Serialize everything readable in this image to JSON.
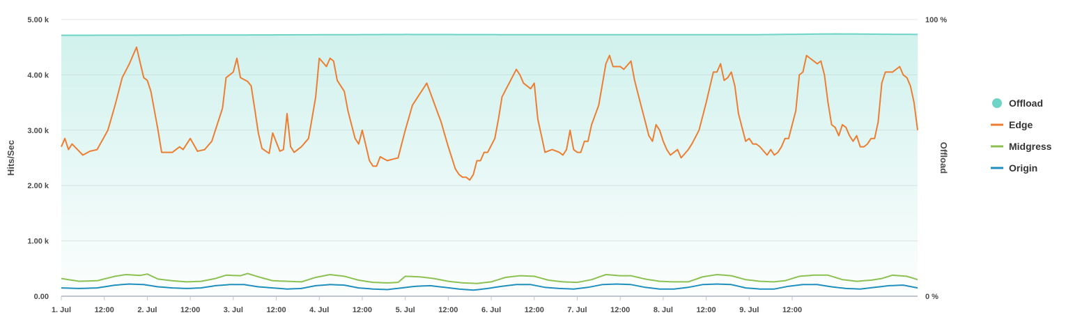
{
  "chart_data": {
    "type": "line",
    "x_range": [
      "1. Jul 00:00",
      "9. Jul 23:00"
    ],
    "x_ticks": [
      "1. Jul",
      "12:00",
      "2. Jul",
      "12:00",
      "3. Jul",
      "12:00",
      "4. Jul",
      "12:00",
      "5. Jul",
      "12:00",
      "6. Jul",
      "12:00",
      "7. Jul",
      "12:00",
      "8. Jul",
      "12:00",
      "9. Jul",
      "12:00"
    ],
    "y_left": {
      "label": "Hits/Sec",
      "ticks": [
        "0.00",
        "1.00 k",
        "2.00 k",
        "3.00 k",
        "4.00 k",
        "5.00 k"
      ],
      "range": [
        0,
        5000
      ]
    },
    "y_right": {
      "label": "Offload",
      "ticks": [
        "0 %",
        "100 %"
      ],
      "range": [
        0,
        100
      ]
    },
    "grid": true,
    "legend_position": "right",
    "series": [
      {
        "name": "Offload",
        "axis": "right",
        "style": "area",
        "color": "#6ed4c6",
        "knots": [
          [
            0,
            94.3
          ],
          [
            48,
            94.4
          ],
          [
            96,
            94.6
          ],
          [
            144,
            94.5
          ],
          [
            192,
            94.5
          ],
          [
            216,
            94.8
          ],
          [
            240,
            94.6
          ],
          [
            264,
            94.7
          ],
          [
            284,
            94.9
          ]
        ],
        "description": "Roughly flat around 94-95 %"
      },
      {
        "name": "Edge",
        "axis": "left",
        "style": "line",
        "color": "#ed7d31",
        "knots": [
          [
            0,
            2700
          ],
          [
            1,
            2850
          ],
          [
            2,
            2650
          ],
          [
            3,
            2750
          ],
          [
            6,
            2550
          ],
          [
            8,
            2620
          ],
          [
            10,
            2650
          ],
          [
            13,
            3000
          ],
          [
            15,
            3450
          ],
          [
            17,
            3950
          ],
          [
            19,
            4200
          ],
          [
            21,
            4500
          ],
          [
            23,
            3950
          ],
          [
            24,
            3900
          ],
          [
            25,
            3700
          ],
          [
            27,
            3000
          ],
          [
            28,
            2600
          ],
          [
            31,
            2600
          ],
          [
            33,
            2700
          ],
          [
            34,
            2650
          ],
          [
            36,
            2850
          ],
          [
            38,
            2620
          ],
          [
            40,
            2650
          ],
          [
            42,
            2800
          ],
          [
            45,
            3400
          ],
          [
            46,
            3950
          ],
          [
            48,
            4050
          ],
          [
            49,
            4300
          ],
          [
            50,
            3950
          ],
          [
            52,
            3880
          ],
          [
            53,
            3800
          ],
          [
            55,
            2950
          ],
          [
            56,
            2670
          ],
          [
            58,
            2580
          ],
          [
            59,
            2950
          ],
          [
            61,
            2620
          ],
          [
            62,
            2650
          ],
          [
            63,
            3300
          ],
          [
            64,
            2700
          ],
          [
            65,
            2600
          ],
          [
            67,
            2700
          ],
          [
            69,
            2850
          ],
          [
            71,
            3600
          ],
          [
            72,
            4300
          ],
          [
            74,
            4150
          ],
          [
            75,
            4300
          ],
          [
            76,
            4250
          ],
          [
            77,
            3900
          ],
          [
            78,
            3800
          ],
          [
            79,
            3700
          ],
          [
            80,
            3350
          ],
          [
            82,
            2850
          ],
          [
            83,
            2750
          ],
          [
            84,
            3000
          ],
          [
            86,
            2450
          ],
          [
            87,
            2350
          ],
          [
            88,
            2350
          ],
          [
            89,
            2520
          ],
          [
            91,
            2450
          ],
          [
            94,
            2500
          ],
          [
            96,
            3000
          ],
          [
            98,
            3450
          ],
          [
            100,
            3650
          ],
          [
            102,
            3850
          ],
          [
            104,
            3500
          ],
          [
            106,
            3150
          ],
          [
            108,
            2700
          ],
          [
            110,
            2300
          ],
          [
            111,
            2200
          ],
          [
            112,
            2150
          ],
          [
            113,
            2150
          ],
          [
            114,
            2100
          ],
          [
            115,
            2200
          ],
          [
            116,
            2450
          ],
          [
            117,
            2450
          ],
          [
            118,
            2600
          ],
          [
            119,
            2600
          ],
          [
            121,
            2850
          ],
          [
            122,
            3200
          ],
          [
            123,
            3600
          ],
          [
            125,
            3850
          ],
          [
            127,
            4100
          ],
          [
            128,
            4000
          ],
          [
            129,
            3850
          ],
          [
            131,
            3750
          ],
          [
            132,
            3850
          ],
          [
            133,
            3200
          ],
          [
            134,
            2900
          ],
          [
            135,
            2600
          ],
          [
            137,
            2650
          ],
          [
            139,
            2600
          ],
          [
            140,
            2550
          ],
          [
            141,
            2650
          ],
          [
            142,
            3000
          ],
          [
            143,
            2650
          ],
          [
            144,
            2600
          ],
          [
            145,
            2600
          ],
          [
            146,
            2800
          ],
          [
            147,
            2800
          ],
          [
            148,
            3100
          ],
          [
            150,
            3450
          ],
          [
            152,
            4200
          ],
          [
            153,
            4350
          ],
          [
            154,
            4150
          ],
          [
            156,
            4150
          ],
          [
            157,
            4100
          ],
          [
            159,
            4250
          ],
          [
            160,
            3900
          ],
          [
            162,
            3400
          ],
          [
            164,
            2900
          ],
          [
            165,
            2800
          ],
          [
            166,
            3100
          ],
          [
            167,
            3000
          ],
          [
            168,
            2800
          ],
          [
            169,
            2650
          ],
          [
            170,
            2550
          ],
          [
            172,
            2650
          ],
          [
            173,
            2500
          ],
          [
            175,
            2650
          ],
          [
            176,
            2750
          ],
          [
            178,
            3000
          ],
          [
            180,
            3500
          ],
          [
            182,
            4050
          ],
          [
            183,
            4050
          ],
          [
            184,
            4200
          ],
          [
            185,
            3900
          ],
          [
            186,
            3950
          ],
          [
            187,
            4050
          ],
          [
            188,
            3800
          ],
          [
            189,
            3300
          ],
          [
            191,
            2800
          ],
          [
            192,
            2850
          ],
          [
            193,
            2750
          ],
          [
            194,
            2750
          ],
          [
            195,
            2700
          ],
          [
            197,
            2550
          ],
          [
            198,
            2650
          ],
          [
            199,
            2550
          ],
          [
            200,
            2600
          ],
          [
            201,
            2700
          ],
          [
            202,
            2850
          ],
          [
            203,
            2850
          ],
          [
            205,
            3350
          ],
          [
            206,
            4000
          ],
          [
            207,
            4050
          ],
          [
            208,
            4350
          ],
          [
            210,
            4250
          ],
          [
            211,
            4200
          ],
          [
            212,
            4250
          ],
          [
            213,
            4000
          ],
          [
            214,
            3500
          ],
          [
            215,
            3100
          ],
          [
            216,
            3050
          ],
          [
            217,
            2900
          ],
          [
            218,
            3100
          ],
          [
            219,
            3050
          ],
          [
            220,
            2900
          ],
          [
            221,
            2800
          ],
          [
            222,
            2900
          ],
          [
            223,
            2700
          ],
          [
            224,
            2700
          ],
          [
            225,
            2750
          ],
          [
            226,
            2850
          ],
          [
            227,
            2850
          ],
          [
            228,
            3150
          ],
          [
            229,
            3850
          ],
          [
            230,
            4050
          ],
          [
            231,
            4050
          ],
          [
            232,
            4050
          ],
          [
            233,
            4100
          ],
          [
            234,
            4150
          ],
          [
            235,
            4000
          ],
          [
            236,
            3950
          ],
          [
            237,
            3800
          ],
          [
            238,
            3500
          ],
          [
            239,
            3000
          ]
        ]
      },
      {
        "name": "Midgress",
        "axis": "left",
        "style": "line",
        "color": "#8cc152",
        "knots": [
          [
            0,
            320
          ],
          [
            5,
            270
          ],
          [
            10,
            280
          ],
          [
            15,
            360
          ],
          [
            18,
            390
          ],
          [
            22,
            375
          ],
          [
            24,
            400
          ],
          [
            27,
            310
          ],
          [
            31,
            280
          ],
          [
            35,
            260
          ],
          [
            39,
            270
          ],
          [
            43,
            320
          ],
          [
            46,
            380
          ],
          [
            50,
            370
          ],
          [
            52,
            410
          ],
          [
            55,
            350
          ],
          [
            59,
            280
          ],
          [
            63,
            270
          ],
          [
            67,
            260
          ],
          [
            71,
            340
          ],
          [
            75,
            390
          ],
          [
            79,
            360
          ],
          [
            83,
            290
          ],
          [
            87,
            250
          ],
          [
            91,
            240
          ],
          [
            94,
            250
          ],
          [
            96,
            360
          ],
          [
            100,
            350
          ],
          [
            104,
            320
          ],
          [
            108,
            270
          ],
          [
            112,
            240
          ],
          [
            116,
            230
          ],
          [
            120,
            260
          ],
          [
            124,
            340
          ],
          [
            128,
            370
          ],
          [
            132,
            360
          ],
          [
            136,
            290
          ],
          [
            140,
            260
          ],
          [
            144,
            250
          ],
          [
            148,
            300
          ],
          [
            152,
            390
          ],
          [
            156,
            370
          ],
          [
            159,
            370
          ],
          [
            163,
            310
          ],
          [
            167,
            270
          ],
          [
            171,
            260
          ],
          [
            175,
            260
          ],
          [
            179,
            350
          ],
          [
            183,
            390
          ],
          [
            187,
            370
          ],
          [
            191,
            300
          ],
          [
            195,
            270
          ],
          [
            199,
            260
          ],
          [
            202,
            280
          ],
          [
            206,
            360
          ],
          [
            210,
            380
          ],
          [
            214,
            380
          ],
          [
            218,
            300
          ],
          [
            222,
            270
          ],
          [
            226,
            290
          ],
          [
            229,
            320
          ],
          [
            232,
            380
          ],
          [
            236,
            360
          ],
          [
            239,
            300
          ]
        ]
      },
      {
        "name": "Origin",
        "axis": "left",
        "style": "line",
        "color": "#1f8fbd",
        "knots": [
          [
            0,
            150
          ],
          [
            5,
            140
          ],
          [
            10,
            150
          ],
          [
            15,
            200
          ],
          [
            19,
            220
          ],
          [
            23,
            210
          ],
          [
            27,
            170
          ],
          [
            31,
            150
          ],
          [
            35,
            140
          ],
          [
            39,
            150
          ],
          [
            43,
            190
          ],
          [
            47,
            210
          ],
          [
            51,
            210
          ],
          [
            55,
            170
          ],
          [
            59,
            150
          ],
          [
            63,
            130
          ],
          [
            67,
            140
          ],
          [
            71,
            190
          ],
          [
            75,
            210
          ],
          [
            79,
            200
          ],
          [
            83,
            150
          ],
          [
            87,
            130
          ],
          [
            91,
            120
          ],
          [
            95,
            150
          ],
          [
            99,
            180
          ],
          [
            103,
            190
          ],
          [
            107,
            160
          ],
          [
            111,
            130
          ],
          [
            115,
            110
          ],
          [
            119,
            140
          ],
          [
            123,
            180
          ],
          [
            127,
            210
          ],
          [
            131,
            210
          ],
          [
            135,
            160
          ],
          [
            139,
            140
          ],
          [
            143,
            130
          ],
          [
            147,
            160
          ],
          [
            151,
            210
          ],
          [
            155,
            220
          ],
          [
            159,
            210
          ],
          [
            163,
            160
          ],
          [
            167,
            130
          ],
          [
            171,
            130
          ],
          [
            175,
            160
          ],
          [
            179,
            210
          ],
          [
            183,
            220
          ],
          [
            187,
            210
          ],
          [
            191,
            150
          ],
          [
            195,
            130
          ],
          [
            199,
            130
          ],
          [
            203,
            180
          ],
          [
            207,
            210
          ],
          [
            211,
            210
          ],
          [
            215,
            170
          ],
          [
            219,
            140
          ],
          [
            223,
            130
          ],
          [
            227,
            160
          ],
          [
            231,
            190
          ],
          [
            235,
            200
          ],
          [
            239,
            150
          ]
        ]
      }
    ]
  }
}
